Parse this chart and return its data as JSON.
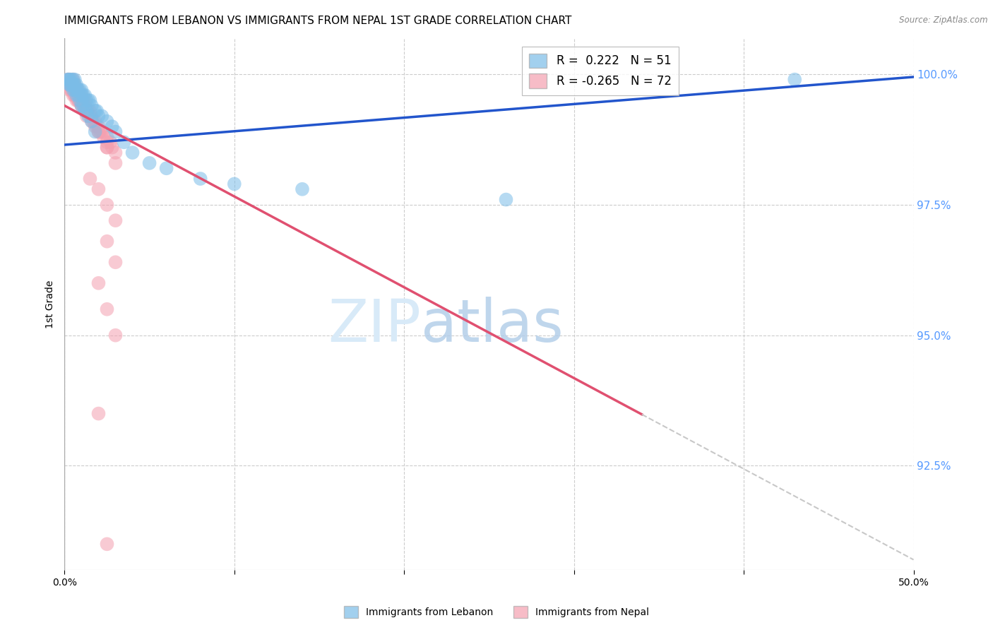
{
  "title": "IMMIGRANTS FROM LEBANON VS IMMIGRANTS FROM NEPAL 1ST GRADE CORRELATION CHART",
  "source_text": "Source: ZipAtlas.com",
  "ylabel": "1st Grade",
  "ytick_labels": [
    "100.0%",
    "97.5%",
    "95.0%",
    "92.5%"
  ],
  "ytick_values": [
    1.0,
    0.975,
    0.95,
    0.925
  ],
  "xlim": [
    0.0,
    0.5
  ],
  "ylim": [
    0.905,
    1.007
  ],
  "legend_lebanon": "R =  0.222   N = 51",
  "legend_nepal": "R = -0.265   N = 72",
  "lebanon_color": "#7bbde8",
  "nepal_color": "#f4a0b0",
  "lebanon_line_color": "#2255cc",
  "nepal_line_color": "#e05070",
  "trendline_dashed_color": "#c8c8c8",
  "background_color": "#ffffff",
  "grid_color": "#cccccc",
  "right_axis_color": "#5599ff",
  "title_fontsize": 11,
  "tick_fontsize": 10,
  "lebanon_scatter_x": [
    0.002,
    0.003,
    0.003,
    0.004,
    0.005,
    0.005,
    0.006,
    0.006,
    0.007,
    0.007,
    0.008,
    0.009,
    0.01,
    0.01,
    0.011,
    0.012,
    0.013,
    0.014,
    0.015,
    0.016,
    0.018,
    0.019,
    0.02,
    0.022,
    0.025,
    0.028,
    0.03,
    0.002,
    0.003,
    0.004,
    0.005,
    0.006,
    0.007,
    0.008,
    0.009,
    0.01,
    0.011,
    0.012,
    0.013,
    0.014,
    0.016,
    0.018,
    0.035,
    0.04,
    0.05,
    0.06,
    0.08,
    0.1,
    0.14,
    0.26,
    0.43
  ],
  "lebanon_scatter_y": [
    0.999,
    0.999,
    0.998,
    0.999,
    0.999,
    0.998,
    0.999,
    0.998,
    0.998,
    0.997,
    0.997,
    0.997,
    0.997,
    0.996,
    0.996,
    0.996,
    0.995,
    0.995,
    0.995,
    0.994,
    0.993,
    0.993,
    0.992,
    0.992,
    0.991,
    0.99,
    0.989,
    0.999,
    0.998,
    0.998,
    0.997,
    0.997,
    0.996,
    0.996,
    0.995,
    0.994,
    0.994,
    0.993,
    0.993,
    0.992,
    0.991,
    0.989,
    0.987,
    0.985,
    0.983,
    0.982,
    0.98,
    0.979,
    0.978,
    0.976,
    0.999
  ],
  "nepal_scatter_x": [
    0.002,
    0.003,
    0.003,
    0.004,
    0.005,
    0.005,
    0.006,
    0.006,
    0.006,
    0.007,
    0.007,
    0.008,
    0.008,
    0.009,
    0.009,
    0.01,
    0.01,
    0.011,
    0.011,
    0.012,
    0.012,
    0.013,
    0.014,
    0.015,
    0.015,
    0.016,
    0.017,
    0.018,
    0.019,
    0.02,
    0.021,
    0.022,
    0.023,
    0.025,
    0.025,
    0.027,
    0.028,
    0.03,
    0.002,
    0.003,
    0.004,
    0.005,
    0.006,
    0.007,
    0.008,
    0.01,
    0.012,
    0.015,
    0.018,
    0.02,
    0.025,
    0.003,
    0.004,
    0.006,
    0.008,
    0.01,
    0.013,
    0.016,
    0.02,
    0.025,
    0.03,
    0.015,
    0.02,
    0.025,
    0.03,
    0.025,
    0.03,
    0.02,
    0.025,
    0.03,
    0.02,
    0.025
  ],
  "nepal_scatter_y": [
    0.999,
    0.999,
    0.998,
    0.998,
    0.999,
    0.998,
    0.998,
    0.997,
    0.997,
    0.997,
    0.996,
    0.997,
    0.996,
    0.996,
    0.995,
    0.996,
    0.995,
    0.995,
    0.994,
    0.995,
    0.994,
    0.993,
    0.993,
    0.993,
    0.992,
    0.992,
    0.991,
    0.991,
    0.99,
    0.99,
    0.989,
    0.989,
    0.988,
    0.988,
    0.987,
    0.987,
    0.986,
    0.985,
    0.998,
    0.997,
    0.997,
    0.996,
    0.996,
    0.995,
    0.995,
    0.994,
    0.993,
    0.992,
    0.99,
    0.989,
    0.986,
    0.998,
    0.997,
    0.996,
    0.995,
    0.994,
    0.992,
    0.991,
    0.989,
    0.986,
    0.983,
    0.98,
    0.978,
    0.975,
    0.972,
    0.968,
    0.964,
    0.96,
    0.955,
    0.95,
    0.935,
    0.91
  ]
}
